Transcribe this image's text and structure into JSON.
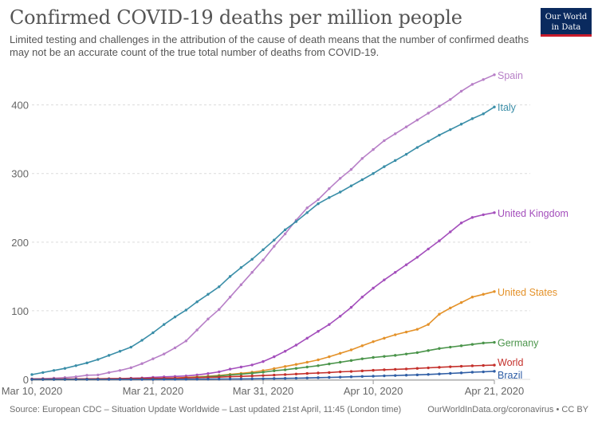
{
  "logo": {
    "line1": "Our World",
    "line2": "in Data"
  },
  "footer": {
    "source": "Source: European CDC – Situation Update Worldwide – Last updated 21st April, 11:45 (London time)",
    "credit": "OurWorldInData.org/coronavirus • CC BY"
  },
  "chart_data": {
    "type": "line",
    "title": "Confirmed COVID-19 deaths per million people",
    "subtitle": "Limited testing and challenges in the attribution of the cause of death means that the number of confirmed deaths may not be an accurate count of the true total number of deaths from COVID-19.",
    "xlabel": "",
    "ylabel": "",
    "x": [
      "Mar 10",
      "Mar 11",
      "Mar 12",
      "Mar 13",
      "Mar 14",
      "Mar 15",
      "Mar 16",
      "Mar 17",
      "Mar 18",
      "Mar 19",
      "Mar 20",
      "Mar 21",
      "Mar 22",
      "Mar 23",
      "Mar 24",
      "Mar 25",
      "Mar 26",
      "Mar 27",
      "Mar 28",
      "Mar 29",
      "Mar 30",
      "Mar 31",
      "Apr 1",
      "Apr 2",
      "Apr 3",
      "Apr 4",
      "Apr 5",
      "Apr 6",
      "Apr 7",
      "Apr 8",
      "Apr 9",
      "Apr 10",
      "Apr 11",
      "Apr 12",
      "Apr 13",
      "Apr 14",
      "Apr 15",
      "Apr 16",
      "Apr 17",
      "Apr 18",
      "Apr 19",
      "Apr 20",
      "Apr 21"
    ],
    "x_ticks": [
      "Mar 10, 2020",
      "Mar 21, 2020",
      "Mar 31, 2020",
      "Apr 10, 2020",
      "Apr 21, 2020"
    ],
    "y_ticks": [
      0,
      100,
      200,
      300,
      400
    ],
    "ylim": [
      0,
      460
    ],
    "grid": "horizontal dashed",
    "legend": "line-end labels",
    "series": [
      {
        "name": "Spain",
        "color": "#b77fc7",
        "values": [
          0.8,
          1.2,
          1.8,
          2.6,
          3.8,
          6,
          6.5,
          10,
          13,
          17,
          23,
          30,
          37,
          46,
          56,
          72,
          88,
          102,
          120,
          138,
          156,
          174,
          194,
          212,
          232,
          250,
          262,
          278,
          293,
          306,
          322,
          335,
          348,
          358,
          368,
          378,
          388,
          398,
          408,
          420,
          430,
          437,
          444
        ]
      },
      {
        "name": "Italy",
        "color": "#3a8ea8",
        "values": [
          7,
          10,
          13,
          16,
          20,
          24,
          29,
          35,
          41,
          47,
          57,
          68,
          80,
          91,
          101,
          113,
          124,
          135,
          150,
          163,
          175,
          189,
          203,
          218,
          230,
          243,
          256,
          265,
          273,
          282,
          291,
          300,
          310,
          319,
          328,
          338,
          347,
          356,
          364,
          372,
          380,
          387,
          397
        ]
      },
      {
        "name": "United Kingdom",
        "color": "#a44fbc",
        "values": [
          0,
          0,
          0,
          0.2,
          0.3,
          0.4,
          0.6,
          0.9,
          1.2,
          1.6,
          2.1,
          3,
          3.7,
          4.3,
          5,
          6.5,
          8.5,
          11,
          15,
          18,
          21,
          26,
          33,
          41,
          50,
          60,
          70,
          80,
          92,
          105,
          120,
          133,
          145,
          156,
          167,
          178,
          190,
          202,
          215,
          228,
          236,
          240,
          243
        ]
      },
      {
        "name": "United States",
        "color": "#e4922a",
        "values": [
          0,
          0,
          0,
          0,
          0,
          0.1,
          0.2,
          0.3,
          0.4,
          0.6,
          0.9,
          1.2,
          1.5,
          2,
          2.8,
          3.7,
          4.7,
          5.8,
          7.3,
          8.8,
          10.5,
          12.8,
          15.7,
          18.8,
          21.8,
          25,
          28.5,
          33,
          38,
          43,
          49,
          55,
          60,
          65,
          69,
          73,
          80,
          95,
          104,
          112,
          120,
          124,
          128
        ]
      },
      {
        "name": "Germany",
        "color": "#4a944a",
        "values": [
          0,
          0,
          0,
          0,
          0.1,
          0.1,
          0.2,
          0.3,
          0.4,
          0.5,
          0.7,
          1,
          1.3,
          1.7,
          2.3,
          3,
          4,
          5,
          6.5,
          7.5,
          9,
          10.5,
          12.5,
          14,
          16,
          18,
          20,
          22.5,
          25,
          27.5,
          30,
          32,
          33.5,
          35,
          37,
          39,
          42,
          45,
          47,
          49,
          51,
          53,
          54
        ]
      },
      {
        "name": "World",
        "color": "#c4302b",
        "values": [
          0.5,
          0.6,
          0.6,
          0.7,
          0.7,
          0.8,
          0.9,
          1,
          1.1,
          1.2,
          1.4,
          1.5,
          1.7,
          1.9,
          2.2,
          2.5,
          2.9,
          3.3,
          3.9,
          4.4,
          5,
          5.6,
          6.3,
          7,
          7.8,
          8.6,
          9.3,
          10,
          11,
          11.6,
          12.4,
          13.2,
          14,
          14.6,
          15.2,
          16,
          16.8,
          17.6,
          18.4,
          19.1,
          19.8,
          20.3,
          20.8
        ]
      },
      {
        "name": "Brazil",
        "color": "#2f5ea5",
        "values": [
          0,
          0,
          0,
          0,
          0,
          0,
          0,
          0,
          0,
          0,
          0,
          0,
          0.1,
          0.1,
          0.2,
          0.3,
          0.4,
          0.5,
          0.6,
          0.7,
          0.8,
          1,
          1.3,
          1.5,
          1.8,
          2.1,
          2.5,
          2.9,
          3.3,
          3.8,
          4.3,
          4.7,
          5.2,
          5.6,
          6.1,
          6.6,
          7.2,
          7.9,
          8.7,
          9.5,
          10.5,
          11,
          11.8
        ]
      }
    ]
  }
}
